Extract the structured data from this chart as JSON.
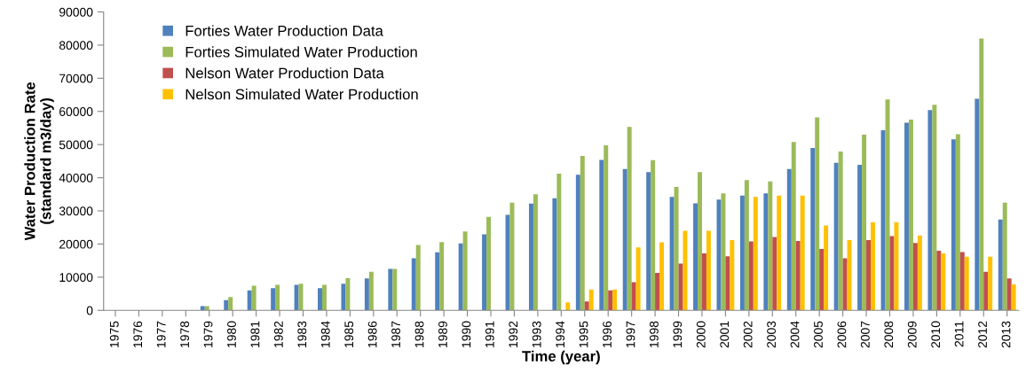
{
  "chart_data": {
    "type": "bar",
    "xlabel": "Time (year)",
    "ylabel": "Water Production Rate\n(standard m3/day)",
    "categories": [
      "1975",
      "1976",
      "1977",
      "1978",
      "1979",
      "1980",
      "1981",
      "1982",
      "1983",
      "1984",
      "1985",
      "1986",
      "1987",
      "1988",
      "1989",
      "1990",
      "1991",
      "1992",
      "1993",
      "1994",
      "1995",
      "1996",
      "1997",
      "1998",
      "1999",
      "2000",
      "2001",
      "2002",
      "2003",
      "2004",
      "2005",
      "2006",
      "2007",
      "2008",
      "2009",
      "2010",
      "2011",
      "2012",
      "2013"
    ],
    "series": [
      {
        "name": "Forties Water Production Data",
        "color": "#4f81bd",
        "values": [
          0,
          0,
          0,
          null,
          1300,
          3100,
          6000,
          6700,
          7700,
          6700,
          8000,
          9600,
          12500,
          15700,
          17500,
          20200,
          22900,
          28800,
          32200,
          33800,
          40900,
          45400,
          42600,
          41700,
          34200,
          32300,
          33400,
          34600,
          35300,
          42600,
          49000,
          44500,
          43900,
          54300,
          56600,
          60400,
          51600,
          63800,
          27400
        ]
      },
      {
        "name": "Forties Simulated Water Production",
        "color": "#9bbb59",
        "values": [
          0,
          0,
          0,
          null,
          1300,
          4000,
          7400,
          7700,
          8000,
          7700,
          9700,
          11600,
          12500,
          19700,
          20600,
          23800,
          28200,
          32500,
          35000,
          41200,
          46600,
          49800,
          55300,
          45300,
          37200,
          41700,
          35300,
          39300,
          38900,
          50800,
          58200,
          47900,
          53000,
          63600,
          57500,
          62000,
          53100,
          82000,
          32500
        ]
      },
      {
        "name": "Nelson Water Production Data",
        "color": "#c0504d",
        "values": [
          0,
          0,
          0,
          0,
          0,
          0,
          0,
          0,
          0,
          0,
          0,
          0,
          0,
          0,
          0,
          0,
          0,
          0,
          0,
          null,
          2700,
          6000,
          8500,
          11300,
          14100,
          17200,
          16300,
          20800,
          22100,
          20900,
          18500,
          15700,
          21200,
          22400,
          20300,
          18000,
          17600,
          11600,
          9600
        ]
      },
      {
        "name": "Nelson Simulated Water Production",
        "color": "#ffc000",
        "values": [
          0,
          0,
          0,
          0,
          0,
          0,
          0,
          0,
          0,
          0,
          0,
          0,
          0,
          0,
          0,
          0,
          0,
          0,
          0,
          2400,
          6300,
          6300,
          19000,
          20500,
          24000,
          24000,
          21200,
          34200,
          34600,
          34600,
          25600,
          21200,
          26600,
          26600,
          22600,
          17200,
          16200,
          16200,
          7800
        ]
      }
    ],
    "ylim": [
      0,
      90000
    ],
    "yticks": [
      0,
      10000,
      20000,
      30000,
      40000,
      50000,
      60000,
      70000,
      80000,
      90000
    ],
    "grid": false,
    "legend": "top left"
  }
}
